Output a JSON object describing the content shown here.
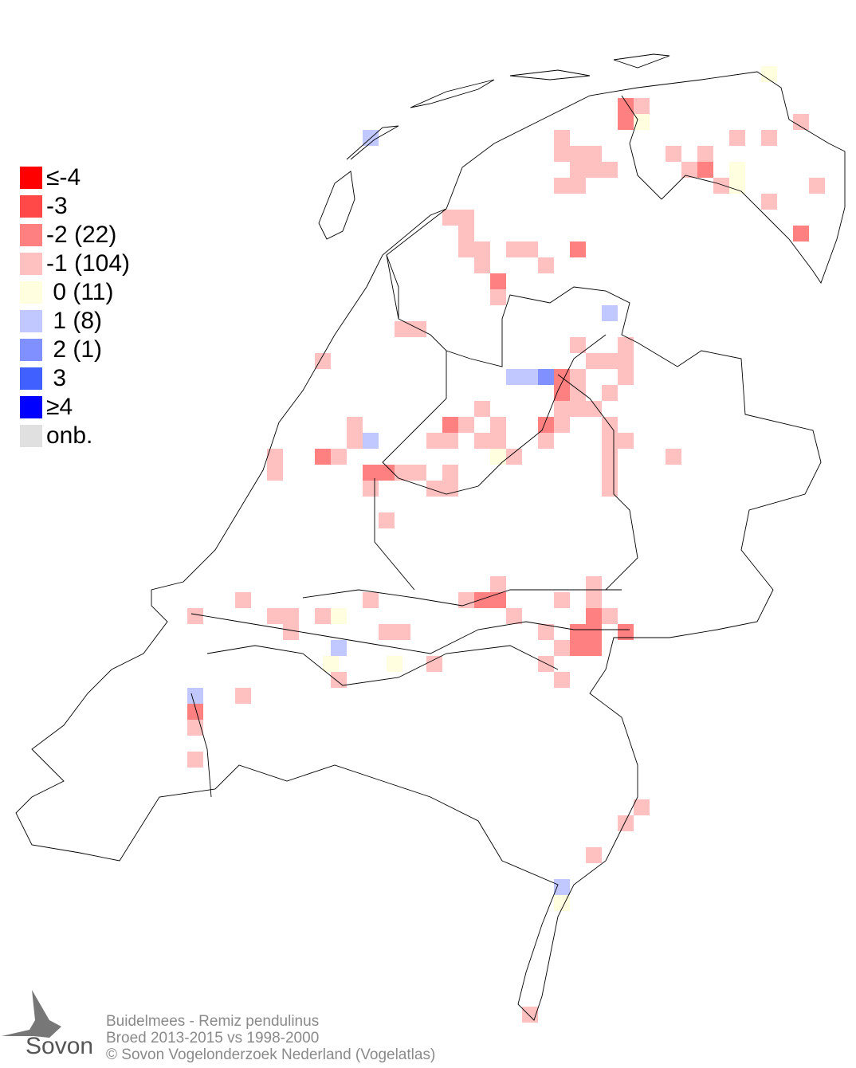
{
  "legend": [
    {
      "label": "≤-4",
      "color": "#ff0000"
    },
    {
      "label": "-3",
      "color": "#ff4848"
    },
    {
      "label": "-2 (22)",
      "color": "#ff8080"
    },
    {
      "label": "-1 (104)",
      "color": "#ffc0c0"
    },
    {
      "label": " 0 (11)",
      "color": "#ffffe0"
    },
    {
      "label": " 1 (8)",
      "color": "#c0c8ff"
    },
    {
      "label": " 2 (1)",
      "color": "#8090ff"
    },
    {
      "label": " 3",
      "color": "#4060ff"
    },
    {
      "label": "≥4",
      "color": "#0000ff"
    },
    {
      "label": "onb.",
      "color": "#e0e0e0"
    }
  ],
  "footer": {
    "line1": "Buidelmees - Remiz pendulinus",
    "line2": "Broed 2013-2015 vs 1998-2000",
    "line3": "© Sovon Vogelonderzoek Nederland (Vogelatlas)"
  },
  "logo": {
    "text": "Sovon"
  }
}
